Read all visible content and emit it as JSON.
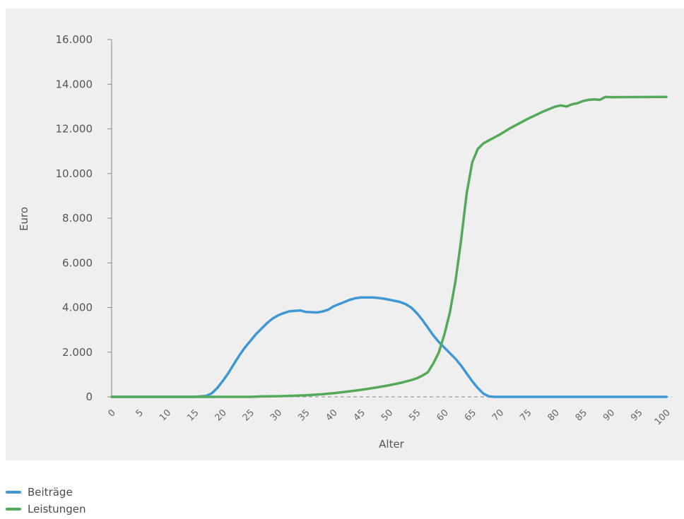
{
  "chart_data": {
    "type": "line",
    "xlabel": "Alter",
    "ylabel": "Euro",
    "xlim": [
      0,
      100
    ],
    "ylim": [
      0,
      16000
    ],
    "x_ticks": [
      "0",
      "5",
      "10",
      "15",
      "20",
      "25",
      "30",
      "35",
      "40",
      "45",
      "50",
      "55",
      "60",
      "65",
      "70",
      "75",
      "80",
      "85",
      "90",
      "95",
      "100"
    ],
    "y_ticks": [
      "0",
      "2.000",
      "4.000",
      "6.000",
      "8.000",
      "10.000",
      "12.000",
      "14.000",
      "16.000"
    ],
    "grid": false,
    "legend_position": "bottom-left",
    "series": [
      {
        "name": "Beiträge",
        "color": "#3f97d4",
        "points": [
          [
            0,
            0
          ],
          [
            15,
            0
          ],
          [
            17,
            40
          ],
          [
            18,
            150
          ],
          [
            19,
            380
          ],
          [
            20,
            700
          ],
          [
            21,
            1050
          ],
          [
            22,
            1450
          ],
          [
            23,
            1850
          ],
          [
            24,
            2200
          ],
          [
            25,
            2500
          ],
          [
            26,
            2800
          ],
          [
            27,
            3050
          ],
          [
            28,
            3300
          ],
          [
            29,
            3500
          ],
          [
            30,
            3650
          ],
          [
            31,
            3750
          ],
          [
            32,
            3830
          ],
          [
            34,
            3870
          ],
          [
            35,
            3800
          ],
          [
            37,
            3780
          ],
          [
            38,
            3820
          ],
          [
            39,
            3900
          ],
          [
            40,
            4050
          ],
          [
            41,
            4150
          ],
          [
            42,
            4250
          ],
          [
            43,
            4350
          ],
          [
            44,
            4420
          ],
          [
            45,
            4450
          ],
          [
            47,
            4450
          ],
          [
            48,
            4430
          ],
          [
            49,
            4400
          ],
          [
            50,
            4350
          ],
          [
            51,
            4300
          ],
          [
            52,
            4250
          ],
          [
            53,
            4150
          ],
          [
            54,
            4000
          ],
          [
            55,
            3750
          ],
          [
            56,
            3450
          ],
          [
            57,
            3100
          ],
          [
            58,
            2750
          ],
          [
            59,
            2450
          ],
          [
            60,
            2200
          ],
          [
            61,
            1950
          ],
          [
            62,
            1700
          ],
          [
            63,
            1400
          ],
          [
            64,
            1050
          ],
          [
            65,
            700
          ],
          [
            66,
            400
          ],
          [
            67,
            150
          ],
          [
            68,
            20
          ],
          [
            69,
            0
          ],
          [
            100,
            0
          ]
        ]
      },
      {
        "name": "Leistungen",
        "color": "#55aa5a",
        "points": [
          [
            0,
            0
          ],
          [
            25,
            0
          ],
          [
            27,
            20
          ],
          [
            30,
            30
          ],
          [
            33,
            50
          ],
          [
            35,
            70
          ],
          [
            38,
            120
          ],
          [
            40,
            160
          ],
          [
            42,
            220
          ],
          [
            44,
            280
          ],
          [
            46,
            350
          ],
          [
            48,
            430
          ],
          [
            50,
            520
          ],
          [
            52,
            620
          ],
          [
            54,
            750
          ],
          [
            55,
            830
          ],
          [
            56,
            950
          ],
          [
            57,
            1100
          ],
          [
            58,
            1500
          ],
          [
            59,
            2000
          ],
          [
            60,
            2800
          ],
          [
            61,
            3800
          ],
          [
            62,
            5200
          ],
          [
            63,
            7000
          ],
          [
            64,
            9100
          ],
          [
            65,
            10500
          ],
          [
            66,
            11100
          ],
          [
            67,
            11350
          ],
          [
            70,
            11750
          ],
          [
            72,
            12050
          ],
          [
            75,
            12450
          ],
          [
            78,
            12800
          ],
          [
            80,
            13000
          ],
          [
            81,
            13050
          ],
          [
            82,
            13000
          ],
          [
            83,
            13100
          ],
          [
            84,
            13150
          ],
          [
            85,
            13250
          ],
          [
            86,
            13300
          ],
          [
            87,
            13320
          ],
          [
            88,
            13300
          ],
          [
            89,
            13430
          ],
          [
            90,
            13420
          ],
          [
            100,
            13430
          ]
        ]
      }
    ]
  }
}
